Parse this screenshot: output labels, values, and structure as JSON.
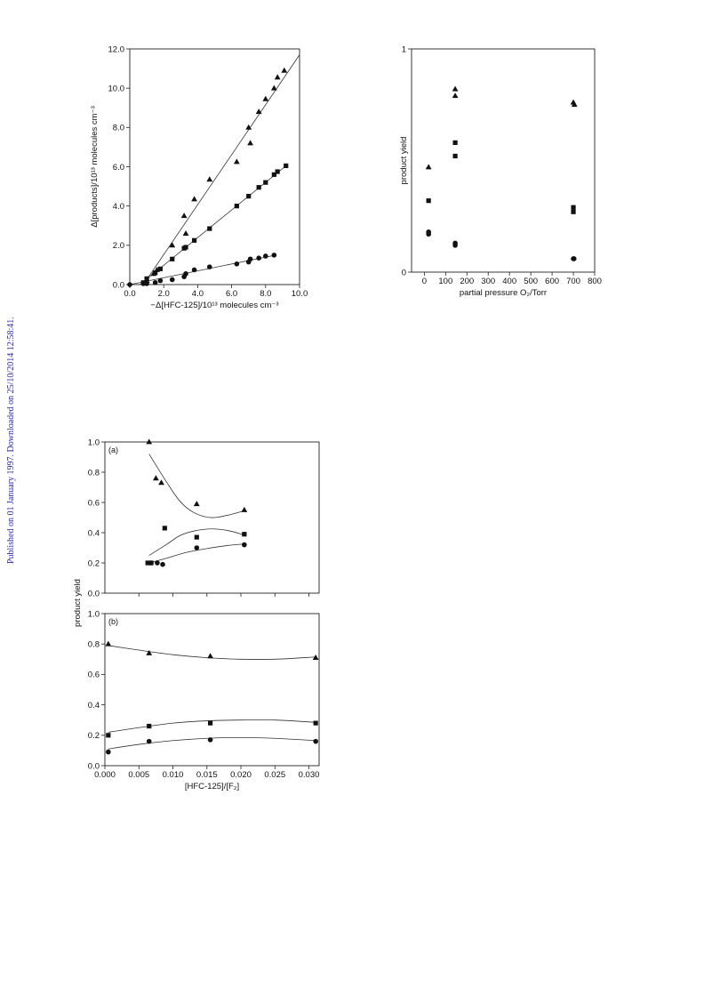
{
  "side_note": "Published on 01 January 1997. Downloaded on 25/10/2014 12:58:41.",
  "chart_data": [
    {
      "id": "fig1",
      "type": "scatter",
      "xlabel": "−Δ[HFC-125]/10¹³ molecules cm⁻³",
      "ylabel": "Δ[products]/10¹³ molecules cm⁻³",
      "xlim": [
        0,
        10
      ],
      "ylim": [
        0,
        12
      ],
      "xticks": [
        0,
        2,
        4,
        6,
        8,
        10
      ],
      "xtick_labels": [
        "0.0",
        "2.0",
        "4.0",
        "6.0",
        "8.0",
        "10.0"
      ],
      "yticks": [
        0,
        2,
        4,
        6,
        8,
        10,
        12
      ],
      "ytick_labels": [
        "0.0",
        "2.0",
        "4.0",
        "6.0",
        "8.0",
        "10.0",
        "12.0"
      ],
      "series": [
        {
          "marker": "triangle",
          "points": [
            [
              1.0,
              0.2
            ],
            [
              1.4,
              0.55
            ],
            [
              1.6,
              0.75
            ],
            [
              2.5,
              2.0
            ],
            [
              3.2,
              3.5
            ],
            [
              3.3,
              2.6
            ],
            [
              3.8,
              4.35
            ],
            [
              4.7,
              5.35
            ],
            [
              6.3,
              6.25
            ],
            [
              7.0,
              8.0
            ],
            [
              7.1,
              7.2
            ],
            [
              7.6,
              8.8
            ],
            [
              8.0,
              9.45
            ],
            [
              8.5,
              10.0
            ],
            [
              8.7,
              10.55
            ],
            [
              9.1,
              10.9
            ]
          ]
        },
        {
          "marker": "square",
          "points": [
            [
              0.8,
              0.1
            ],
            [
              1.0,
              0.3
            ],
            [
              1.5,
              0.6
            ],
            [
              1.8,
              0.8
            ],
            [
              2.5,
              1.3
            ],
            [
              3.2,
              1.85
            ],
            [
              3.3,
              1.9
            ],
            [
              3.8,
              2.25
            ],
            [
              4.7,
              2.85
            ],
            [
              6.3,
              4.0
            ],
            [
              7.0,
              4.5
            ],
            [
              7.6,
              4.95
            ],
            [
              8.0,
              5.2
            ],
            [
              8.5,
              5.6
            ],
            [
              8.7,
              5.75
            ],
            [
              9.2,
              6.05
            ]
          ]
        },
        {
          "marker": "circle",
          "points": [
            [
              0.0,
              0.0
            ],
            [
              0.8,
              0.05
            ],
            [
              1.0,
              0.05
            ],
            [
              1.5,
              0.1
            ],
            [
              1.8,
              0.2
            ],
            [
              2.5,
              0.25
            ],
            [
              3.2,
              0.4
            ],
            [
              3.3,
              0.55
            ],
            [
              3.8,
              0.75
            ],
            [
              4.7,
              0.9
            ],
            [
              6.3,
              1.05
            ],
            [
              7.0,
              1.15
            ],
            [
              7.1,
              1.3
            ],
            [
              7.6,
              1.35
            ],
            [
              8.0,
              1.45
            ],
            [
              8.5,
              1.5
            ]
          ]
        }
      ],
      "fit_lines": [
        {
          "from": [
            0.8,
            0
          ],
          "to": [
            10,
            11.7
          ]
        },
        {
          "from": [
            0.6,
            0
          ],
          "to": [
            9.2,
            6.05
          ]
        },
        {
          "from": [
            0.0,
            0
          ],
          "to": [
            8.6,
            1.5
          ]
        }
      ]
    },
    {
      "id": "fig2",
      "type": "scatter",
      "xlabel": "partial pressure O₂/Torr",
      "ylabel": "product yield",
      "xlim": [
        -60,
        800
      ],
      "ylim": [
        0,
        1
      ],
      "xticks": [
        0,
        100,
        200,
        300,
        400,
        500,
        600,
        700,
        800
      ],
      "xtick_labels": [
        "0",
        "100",
        "200",
        "300",
        "400",
        "500",
        "600",
        "700",
        "800"
      ],
      "yticks": [
        0,
        1
      ],
      "ytick_labels": [
        "0",
        "1"
      ],
      "series": [
        {
          "marker": "triangle",
          "points": [
            [
              20,
              0.47
            ],
            [
              145,
              0.82
            ],
            [
              145,
              0.79
            ],
            [
              700,
              0.76
            ],
            [
              705,
              0.75
            ]
          ]
        },
        {
          "marker": "square",
          "points": [
            [
              20,
              0.32
            ],
            [
              145,
              0.58
            ],
            [
              145,
              0.52
            ],
            [
              700,
              0.29
            ],
            [
              700,
              0.27
            ]
          ]
        },
        {
          "marker": "circle",
          "points": [
            [
              20,
              0.18
            ],
            [
              20,
              0.17
            ],
            [
              145,
              0.13
            ],
            [
              145,
              0.12
            ],
            [
              700,
              0.06
            ],
            [
              703,
              0.06
            ]
          ]
        }
      ]
    },
    {
      "id": "fig3a",
      "type": "scatter",
      "panel_label": "(a)",
      "xlim": [
        0,
        0.0315
      ],
      "ylim": [
        0,
        1
      ],
      "yticks": [
        0,
        0.2,
        0.4,
        0.6,
        0.8,
        1.0
      ],
      "ytick_labels": [
        "0.0",
        "0.2",
        "0.4",
        "0.6",
        "0.8",
        "1.0"
      ],
      "xticks": [
        0.005,
        0.01,
        0.015,
        0.02,
        0.025,
        0.03
      ],
      "series": [
        {
          "marker": "triangle",
          "points": [
            [
              0.0065,
              1.0
            ],
            [
              0.0075,
              0.76
            ],
            [
              0.0083,
              0.73
            ],
            [
              0.0135,
              0.59
            ],
            [
              0.0205,
              0.55
            ]
          ]
        },
        {
          "marker": "square",
          "points": [
            [
              0.0063,
              0.2
            ],
            [
              0.0068,
              0.2
            ],
            [
              0.0088,
              0.43
            ],
            [
              0.0135,
              0.37
            ],
            [
              0.0205,
              0.39
            ]
          ]
        },
        {
          "marker": "circle",
          "points": [
            [
              0.0068,
              0.2
            ],
            [
              0.0077,
              0.2
            ],
            [
              0.0085,
              0.19
            ],
            [
              0.0135,
              0.3
            ],
            [
              0.0205,
              0.32
            ]
          ]
        }
      ],
      "fit_curves": [
        [
          [
            0.0065,
            0.92
          ],
          [
            0.009,
            0.74
          ],
          [
            0.011,
            0.61
          ],
          [
            0.013,
            0.535
          ],
          [
            0.0155,
            0.5
          ],
          [
            0.018,
            0.515
          ],
          [
            0.0205,
            0.545
          ]
        ],
        [
          [
            0.0065,
            0.25
          ],
          [
            0.009,
            0.32
          ],
          [
            0.011,
            0.38
          ],
          [
            0.013,
            0.41
          ],
          [
            0.0155,
            0.425
          ],
          [
            0.018,
            0.415
          ],
          [
            0.0205,
            0.385
          ]
        ],
        [
          [
            0.0065,
            0.2
          ],
          [
            0.009,
            0.23
          ],
          [
            0.012,
            0.27
          ],
          [
            0.015,
            0.295
          ],
          [
            0.018,
            0.315
          ],
          [
            0.0205,
            0.325
          ]
        ]
      ]
    },
    {
      "id": "fig3b",
      "type": "scatter",
      "panel_label": "(b)",
      "xlabel": "[HFC-125]/[F₂]",
      "ylabel": "product yield",
      "xlim": [
        0,
        0.0315
      ],
      "ylim": [
        0,
        1
      ],
      "yticks": [
        0,
        0.2,
        0.4,
        0.6,
        0.8,
        1.0
      ],
      "ytick_labels": [
        "0.0",
        "0.2",
        "0.4",
        "0.6",
        "0.8",
        "1.0"
      ],
      "xticks": [
        0,
        0.005,
        0.01,
        0.015,
        0.02,
        0.025,
        0.03
      ],
      "xtick_labels": [
        "0.000",
        "0.005",
        "0.010",
        "0.015",
        "0.020",
        "0.025",
        "0.030"
      ],
      "series": [
        {
          "marker": "triangle",
          "points": [
            [
              0.0005,
              0.8
            ],
            [
              0.0065,
              0.74
            ],
            [
              0.0155,
              0.72
            ],
            [
              0.031,
              0.71
            ]
          ]
        },
        {
          "marker": "square",
          "points": [
            [
              0.0005,
              0.2
            ],
            [
              0.0065,
              0.26
            ],
            [
              0.0155,
              0.28
            ],
            [
              0.031,
              0.28
            ]
          ]
        },
        {
          "marker": "circle",
          "points": [
            [
              0.0005,
              0.09
            ],
            [
              0.0065,
              0.16
            ],
            [
              0.0155,
              0.17
            ],
            [
              0.031,
              0.16
            ]
          ]
        }
      ],
      "fit_curves": [
        [
          [
            0.0005,
            0.79
          ],
          [
            0.005,
            0.76
          ],
          [
            0.01,
            0.73
          ],
          [
            0.015,
            0.71
          ],
          [
            0.02,
            0.7
          ],
          [
            0.025,
            0.7
          ],
          [
            0.031,
            0.715
          ]
        ],
        [
          [
            0.0005,
            0.22
          ],
          [
            0.005,
            0.25
          ],
          [
            0.01,
            0.28
          ],
          [
            0.015,
            0.295
          ],
          [
            0.02,
            0.3
          ],
          [
            0.025,
            0.3
          ],
          [
            0.031,
            0.285
          ]
        ],
        [
          [
            0.0005,
            0.11
          ],
          [
            0.005,
            0.14
          ],
          [
            0.01,
            0.165
          ],
          [
            0.015,
            0.18
          ],
          [
            0.02,
            0.185
          ],
          [
            0.025,
            0.18
          ],
          [
            0.031,
            0.165
          ]
        ]
      ]
    }
  ]
}
